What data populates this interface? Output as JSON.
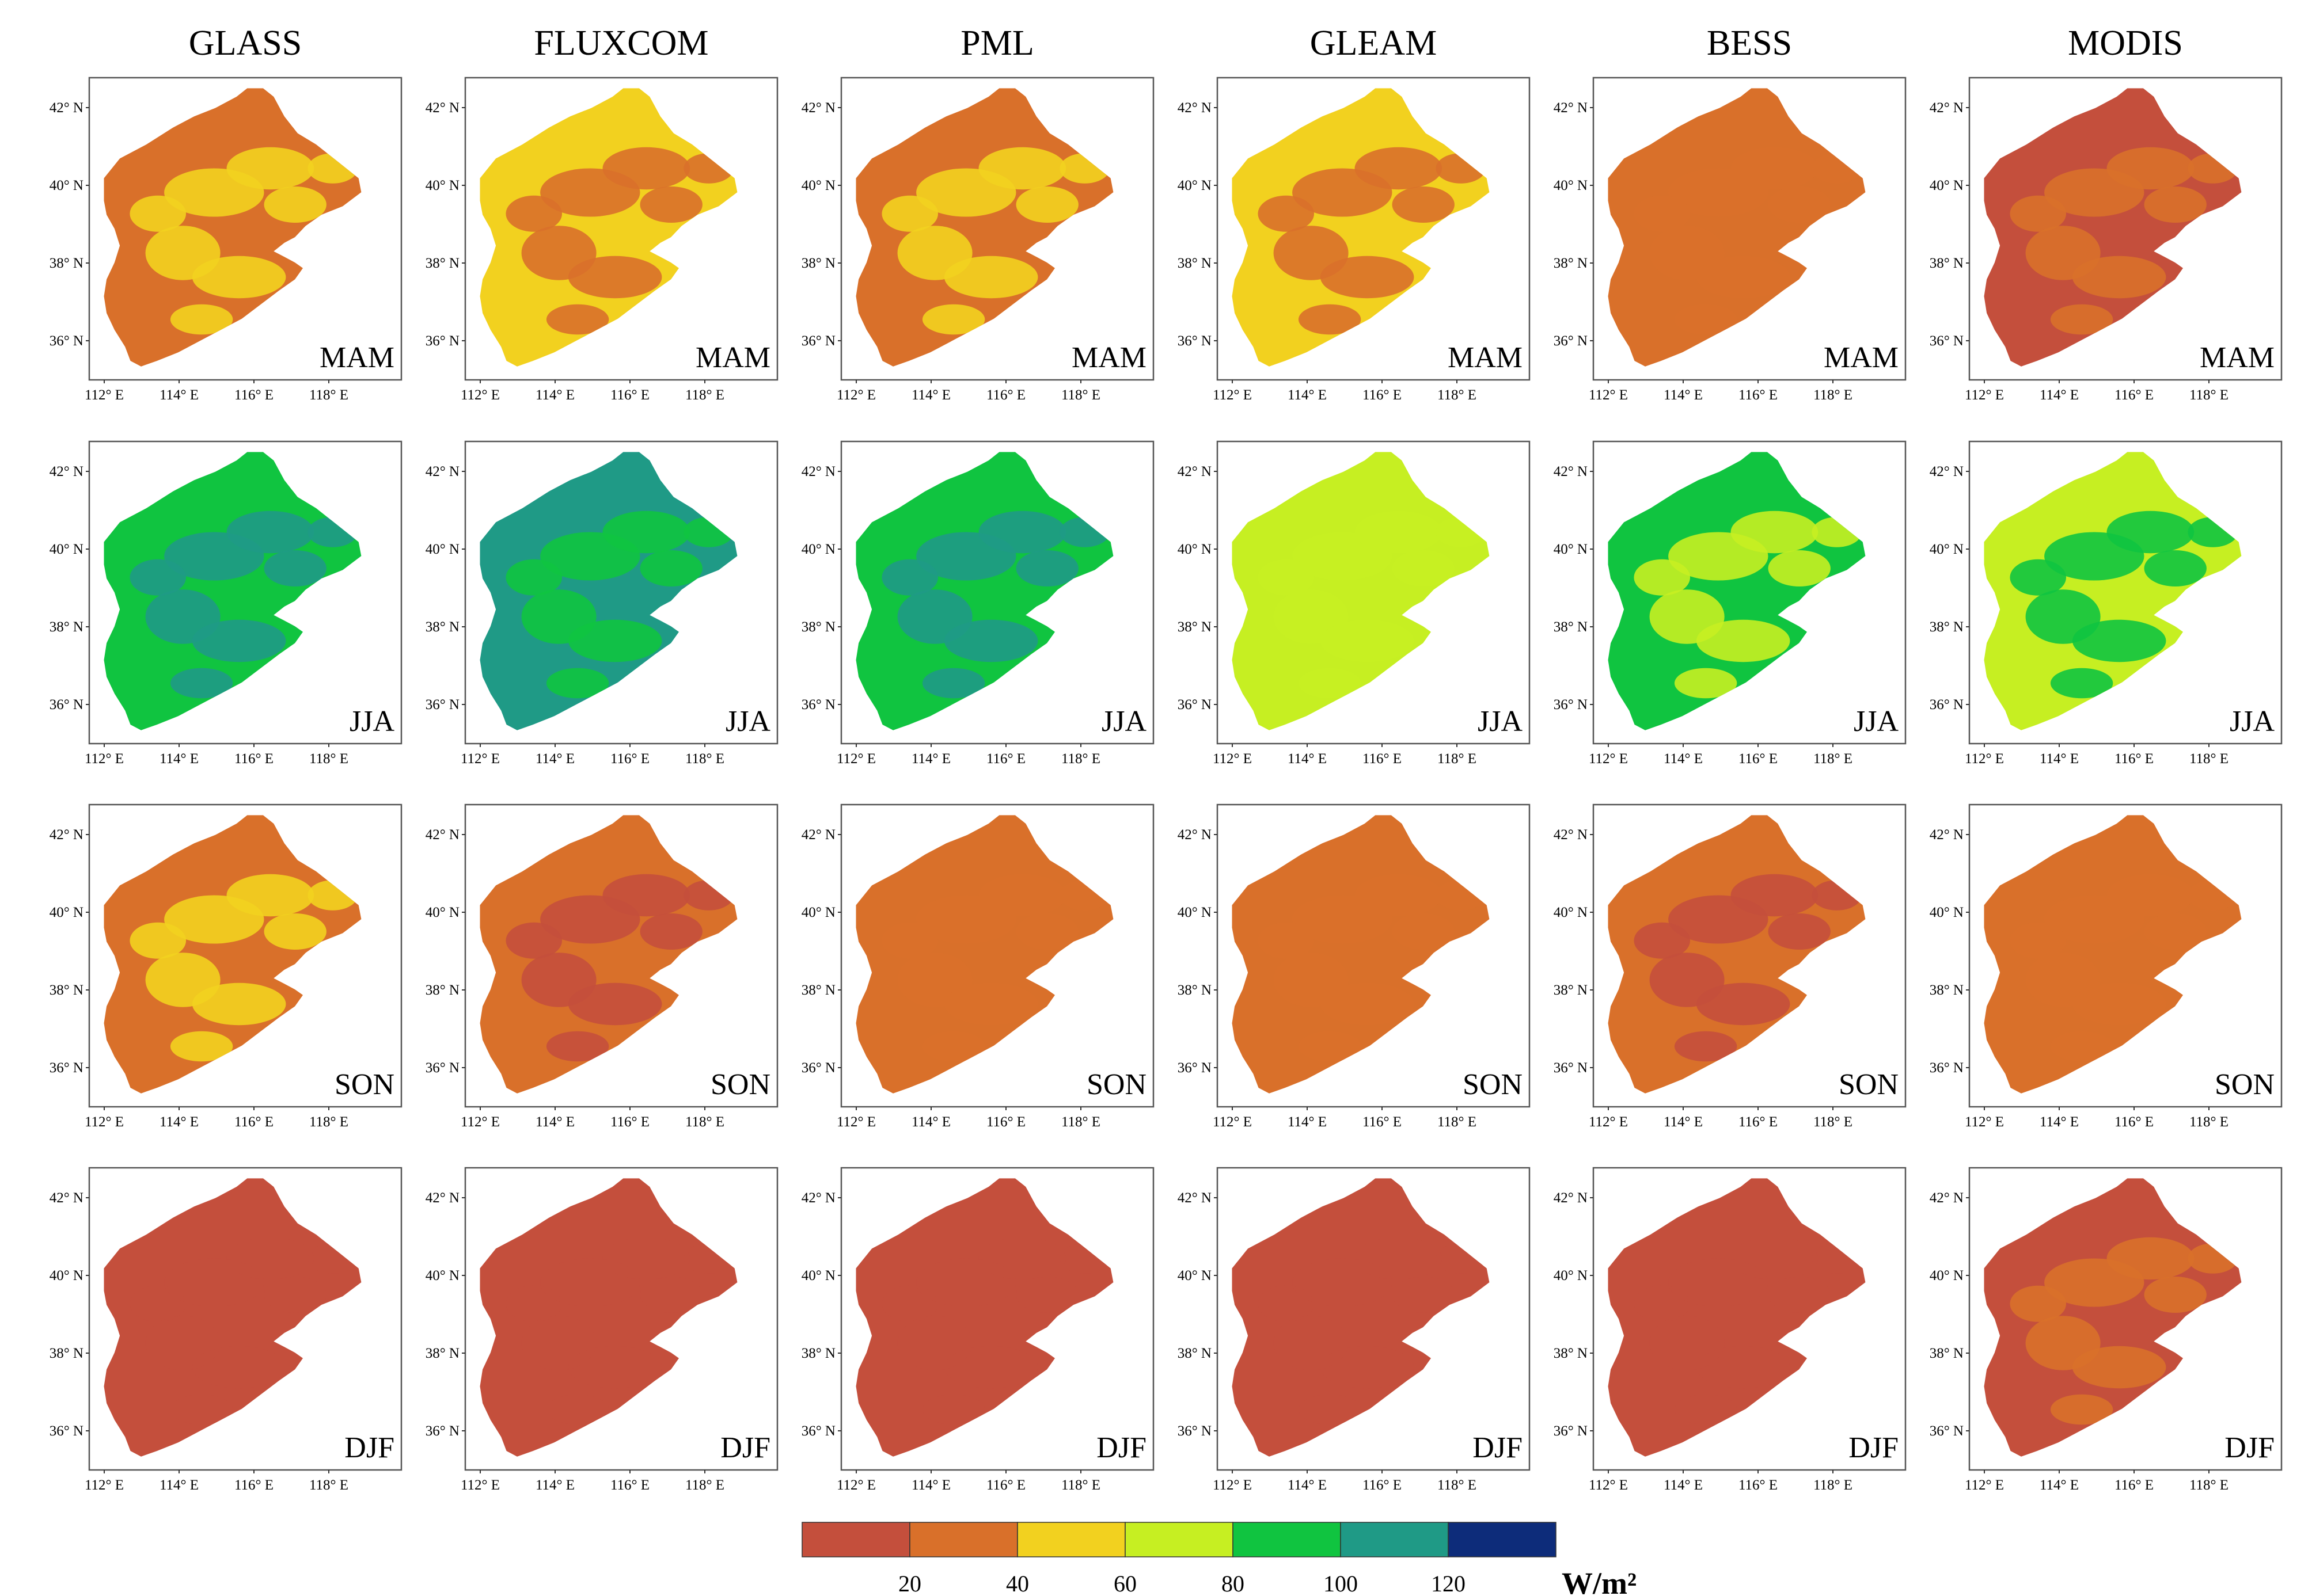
{
  "columns": [
    "GLASS",
    "FLUXCOM",
    "PML",
    "GLEAM",
    "BESS",
    "MODIS"
  ],
  "seasons": [
    "MAM",
    "JJA",
    "SON",
    "DJF"
  ],
  "lat_ticks": [
    "42° N",
    "40° N",
    "38° N",
    "36° N"
  ],
  "lon_ticks": [
    "112° E",
    "114° E",
    "116° E",
    "118° E"
  ],
  "colorbar": {
    "colors": [
      "#c44f3c",
      "#d9702a",
      "#f2d11f",
      "#c6ef22",
      "#10c440",
      "#1f9a86",
      "#0d2c7a"
    ],
    "labels": [
      "20",
      "40",
      "60",
      "80",
      "100",
      "120"
    ],
    "unit": "W/m²"
  },
  "region_colors": {
    "GLASS": {
      "MAM": [
        "#d9702a",
        "#f2d11f"
      ],
      "JJA": [
        "#10c440",
        "#1f9a86"
      ],
      "SON": [
        "#d9702a",
        "#f2d11f"
      ],
      "DJF": [
        "#c44f3c",
        "#c44f3c"
      ]
    },
    "FLUXCOM": {
      "MAM": [
        "#f2d11f",
        "#d9702a"
      ],
      "JJA": [
        "#1f9a86",
        "#10c440"
      ],
      "SON": [
        "#d9702a",
        "#c44f3c"
      ],
      "DJF": [
        "#c44f3c",
        "#c44f3c"
      ]
    },
    "PML": {
      "MAM": [
        "#d9702a",
        "#f2d11f"
      ],
      "JJA": [
        "#10c440",
        "#1f9a86"
      ],
      "SON": [
        "#d9702a",
        "#d9702a"
      ],
      "DJF": [
        "#c44f3c",
        "#c44f3c"
      ]
    },
    "GLEAM": {
      "MAM": [
        "#f2d11f",
        "#d9702a"
      ],
      "JJA": [
        "#c6ef22",
        "#c6ef22"
      ],
      "SON": [
        "#d9702a",
        "#d9702a"
      ],
      "DJF": [
        "#c44f3c",
        "#c44f3c"
      ]
    },
    "BESS": {
      "MAM": [
        "#d9702a",
        "#d9702a"
      ],
      "JJA": [
        "#10c440",
        "#c6ef22"
      ],
      "SON": [
        "#d9702a",
        "#c44f3c"
      ],
      "DJF": [
        "#c44f3c",
        "#c44f3c"
      ]
    },
    "MODIS": {
      "MAM": [
        "#c44f3c",
        "#d9702a"
      ],
      "JJA": [
        "#c6ef22",
        "#10c440"
      ],
      "SON": [
        "#d9702a",
        "#d9702a"
      ],
      "DJF": [
        "#c44f3c",
        "#d9702a"
      ]
    }
  }
}
